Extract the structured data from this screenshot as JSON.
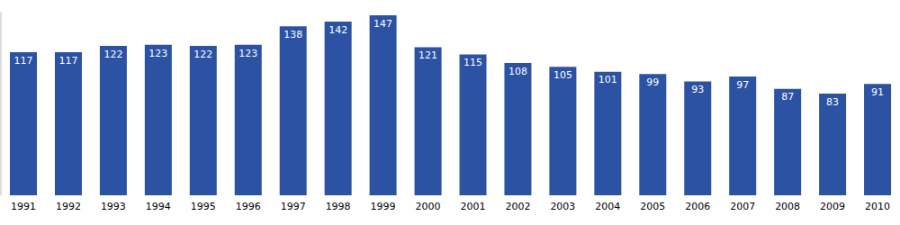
{
  "chart_data": {
    "type": "bar",
    "categories": [
      "1991",
      "1992",
      "1993",
      "1994",
      "1995",
      "1996",
      "1997",
      "1998",
      "1999",
      "2000",
      "2001",
      "2002",
      "2003",
      "2004",
      "2005",
      "2006",
      "2007",
      "2008",
      "2009",
      "2010"
    ],
    "values": [
      117,
      117,
      122,
      123,
      122,
      123,
      138,
      142,
      147,
      121,
      115,
      108,
      105,
      101,
      99,
      93,
      97,
      87,
      83,
      91
    ],
    "color": "#2b52a3",
    "ylim": [
      0,
      150
    ],
    "grid": false,
    "data_labels": true,
    "tick_labels": "x"
  }
}
